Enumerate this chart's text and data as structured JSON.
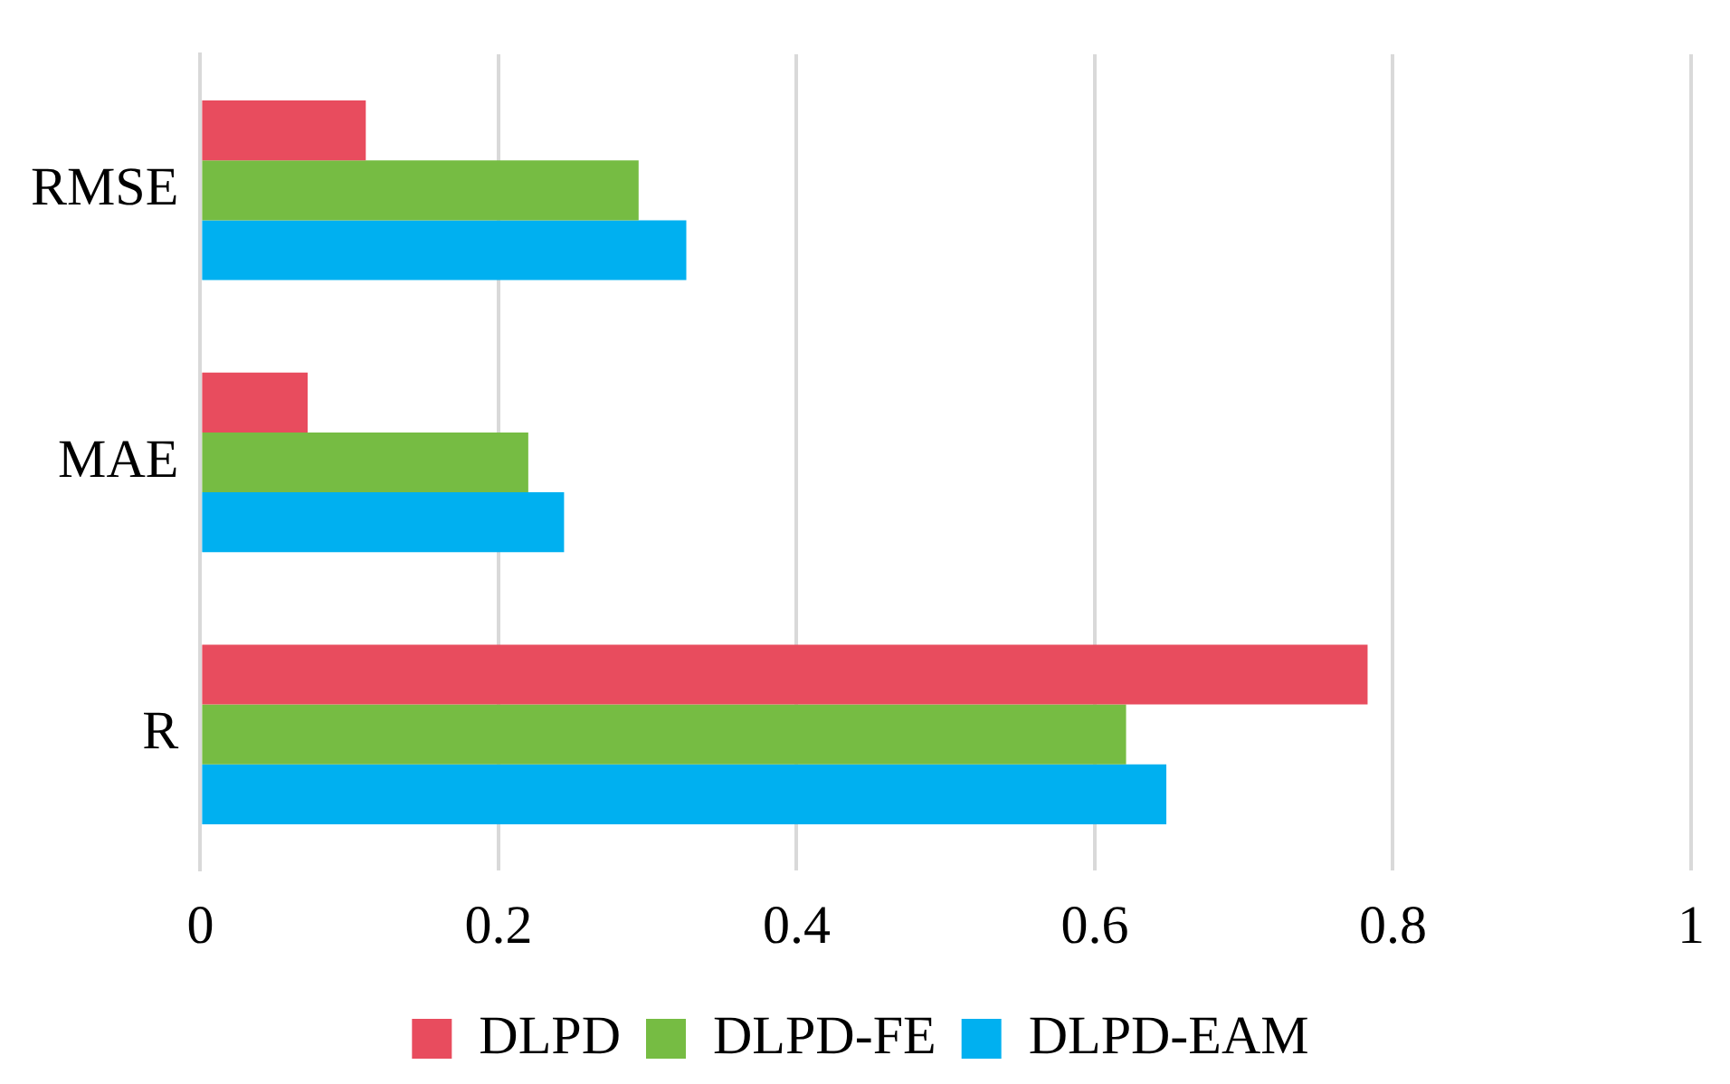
{
  "chart_data": {
    "type": "bar",
    "orientation": "horizontal",
    "categories": [
      "RMSE",
      "MAE",
      "R"
    ],
    "series": [
      {
        "name": "DLPD",
        "color": "#e84c5e",
        "values": [
          0.111,
          0.072,
          0.783
        ]
      },
      {
        "name": "DLPD-FE",
        "color": "#76bc43",
        "values": [
          0.294,
          0.22,
          0.621
        ]
      },
      {
        "name": "DLPD-EAM",
        "color": "#00b0f0",
        "values": [
          0.326,
          0.244,
          0.648
        ]
      }
    ],
    "xlim": [
      0,
      1
    ],
    "xticks": [
      0,
      0.2,
      0.4,
      0.6,
      0.8,
      1
    ],
    "grid": "x",
    "legend": "bottom"
  }
}
